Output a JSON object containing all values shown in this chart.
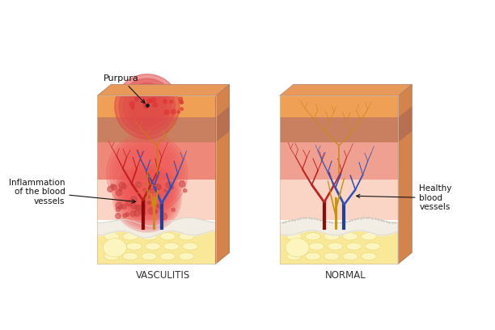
{
  "bg_color": "#ffffff",
  "title_vasculitis": "VASCULITIS",
  "title_normal": "NORMAL",
  "label_purpura": "Purpura",
  "label_inflammation": "Inflammation\nof the blood\nvessels",
  "label_healthy": "Healthy\nblood\nvessels",
  "colors": {
    "epidermis_orange": "#F0A055",
    "epidermis_top_3d": "#E09050",
    "dermis_brown": "#C88060",
    "dermis_pink_normal": "#F0A090",
    "dermis_pink_inflamed": "#EE8878",
    "subdermis_pink": "#F5C5B5",
    "subdermis_light": "#FAD5C5",
    "white_layer": "#F2EEE5",
    "fat_yellow": "#F8E898",
    "fat_cell": "#FDF5C0",
    "fat_border": "#E8D870",
    "right_side_orange": "#D4844A",
    "right_side_brown": "#B87050",
    "top_face_orange": "#E89858",
    "purpura_red": "#E04848",
    "purpura_dot": "#CC3333",
    "inflam_dot": "#CC4444",
    "inflam_red_bg": "#EE6666",
    "vessel_dark_red": "#8B0A0A",
    "vessel_red": "#C02020",
    "vessel_blue": "#2040A0",
    "vessel_blue2": "#3050B8",
    "vessel_yellow": "#C8900A",
    "vessel_orange_cap": "#CC7030",
    "capillary_red_fine": "#CC2828"
  },
  "fs_label": 7.5,
  "fs_title": 8.5
}
